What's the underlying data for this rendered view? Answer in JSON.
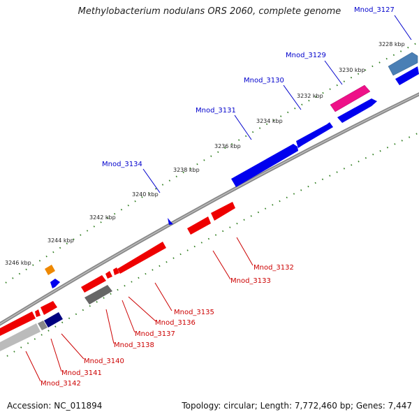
{
  "title": "Methylobacterium nodulans ORS 2060, complete genome",
  "footer": {
    "accession_label": "Accession:",
    "accession": "NC_011894",
    "topology_label": "Topology:",
    "topology": "circular",
    "length_label": "Length:",
    "length": "7,772,460 bp",
    "genes_label": "Genes:",
    "genes": "7,447"
  },
  "colors": {
    "backbone": "#888888",
    "tick": "#2e7d1e",
    "label_forward": "#0000cc",
    "label_reverse": "#cc0000",
    "cds_red": "#ee0000",
    "cds_blue": "#0000ee",
    "cds_navy": "#000080",
    "cds_magenta": "#ee1188",
    "cds_gray": "#666666",
    "cds_lightgray": "#bbbbbb",
    "cds_steel": "#4a7fb5",
    "cds_orange": "#ee8800"
  },
  "ticks": [
    {
      "label": "3228 kbp",
      "kbp": 3228
    },
    {
      "label": "3230 kbp",
      "kbp": 3230
    },
    {
      "label": "3232 kbp",
      "kbp": 3232
    },
    {
      "label": "3234 kbp",
      "kbp": 3234
    },
    {
      "label": "3236 kbp",
      "kbp": 3236
    },
    {
      "label": "3238 kbp",
      "kbp": 3238
    },
    {
      "label": "3240 kbp",
      "kbp": 3240
    },
    {
      "label": "3242 kbp",
      "kbp": 3242
    },
    {
      "label": "3244 kbp",
      "kbp": 3244
    },
    {
      "label": "3246 kbp",
      "kbp": 3246
    }
  ],
  "genes_forward": [
    {
      "name": "Mnod_3127"
    },
    {
      "name": "Mnod_3129"
    },
    {
      "name": "Mnod_3130"
    },
    {
      "name": "Mnod_3131"
    },
    {
      "name": "Mnod_3134"
    }
  ],
  "genes_reverse": [
    {
      "name": "Mnod_3132"
    },
    {
      "name": "Mnod_3133"
    },
    {
      "name": "Mnod_3135"
    },
    {
      "name": "Mnod_3136"
    },
    {
      "name": "Mnod_3137"
    },
    {
      "name": "Mnod_3138"
    },
    {
      "name": "Mnod_3140"
    },
    {
      "name": "Mnod_3141"
    },
    {
      "name": "Mnod_3142"
    }
  ]
}
